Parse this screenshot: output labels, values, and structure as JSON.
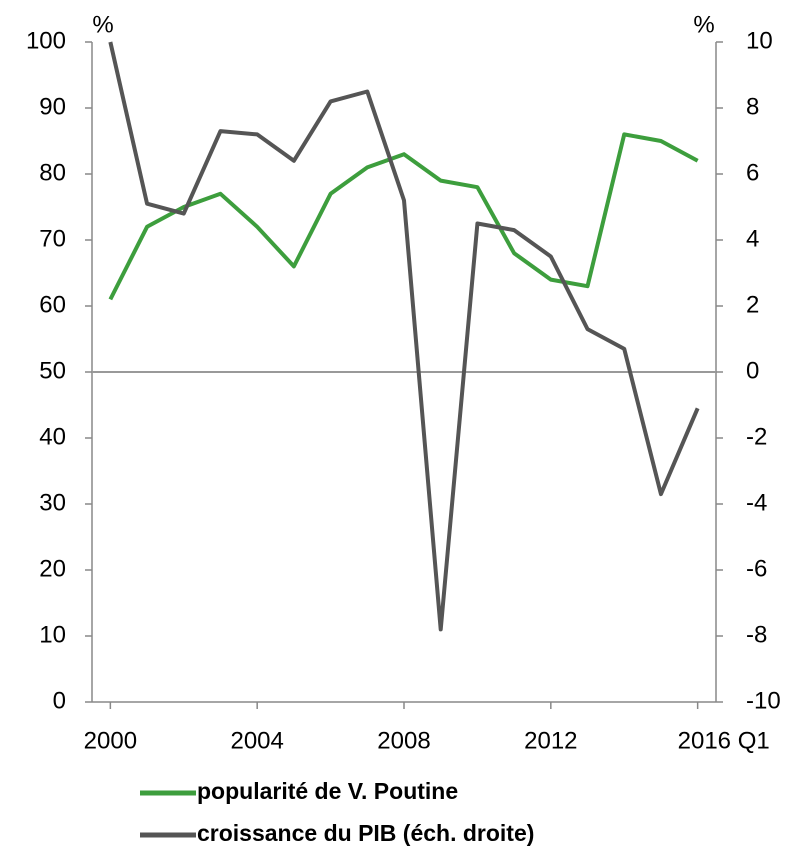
{
  "chart_data": {
    "type": "line",
    "y_unit": "%",
    "y2_unit": "%",
    "x": [
      2000,
      2001,
      2002,
      2003,
      2004,
      2005,
      2006,
      2007,
      2008,
      2009,
      2010,
      2011,
      2012,
      2013,
      2014,
      2015,
      2016
    ],
    "xlim": [
      1999.5,
      2016.5
    ],
    "xticks": [
      2000,
      2004,
      2008,
      2012,
      {
        "value": 2016,
        "label": "2016 Q1"
      }
    ],
    "ylim": [
      0,
      100
    ],
    "yticks": [
      0,
      10,
      20,
      30,
      40,
      50,
      60,
      70,
      80,
      90,
      100
    ],
    "y2lim": [
      -10,
      10
    ],
    "y2ticks": [
      -10,
      -8,
      -6,
      -4,
      -2,
      0,
      2,
      4,
      6,
      8,
      10
    ],
    "zero_line_y2": true,
    "series": [
      {
        "name": "popularité de V. Poutine",
        "color": "#3d9e3d",
        "values": [
          61,
          72,
          75,
          77,
          72,
          66,
          77,
          81,
          83,
          79,
          78,
          68,
          64,
          63,
          86,
          85,
          82
        ]
      },
      {
        "name": "croissance du PIB (éch. droite)",
        "color": "#555555",
        "axis": "y2",
        "values": [
          10,
          5.1,
          4.8,
          7.3,
          7.2,
          6.4,
          8.2,
          8.5,
          5.2,
          -7.8,
          4.5,
          4.3,
          3.5,
          1.3,
          0.7,
          -3.7,
          -1.1
        ]
      }
    ]
  }
}
